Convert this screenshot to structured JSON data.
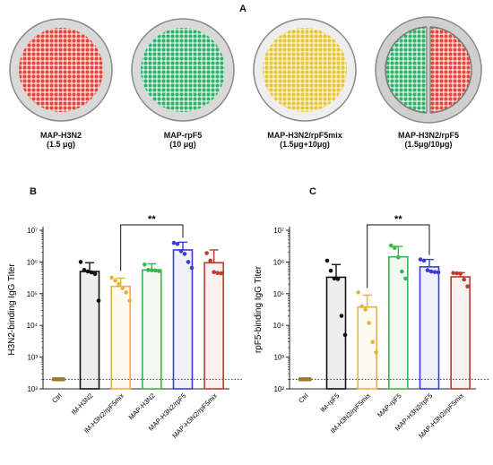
{
  "panels": {
    "A": "A",
    "B": "B",
    "C": "C"
  },
  "map_panel": {
    "patches": [
      {
        "name": "MAP-H3N2",
        "dose": "(1.5 μg)",
        "colors": [
          "#e8453c"
        ]
      },
      {
        "name": "MAP-rpF5",
        "dose": "(10 μg)",
        "colors": [
          "#2fb36a"
        ]
      },
      {
        "name": "MAP-H3N2/rpF5mix",
        "dose": "(1.5μg+10μg)",
        "colors": [
          "#e6c63a"
        ]
      },
      {
        "name": "MAP-H3N2/rpF5",
        "dose": "(1.5μg/10μg)",
        "colors": [
          "#2fb36a",
          "#e8453c"
        ]
      }
    ]
  },
  "chart_data": [
    {
      "type": "bar",
      "ylabel": "H3N2-binding IgG Titer",
      "yscale": "log",
      "ylim": [
        100,
        10000000
      ],
      "yticks": [
        "10²",
        "10³",
        "10⁴",
        "10⁵",
        "10⁶",
        "10⁷"
      ],
      "dotted_line": 200,
      "significance": {
        "label": "**",
        "from": "IM-H3N2/rpF5mix",
        "to": "MAP-H3N2/rpF5"
      },
      "categories": [
        "Ctrl",
        "IM-H3N2",
        "IM-H3N2/rpF5mix",
        "MAP-H3N2",
        "MAP-H3N2/rpF5",
        "MAP-H3N2/rpF5mix"
      ],
      "colors": [
        "#9c7a2a",
        "#111111",
        "#e8b33a",
        "#39b54a",
        "#3b3bd9",
        "#c0392b"
      ],
      "values": [
        200,
        500000,
        170000,
        560000,
        2400000,
        950000
      ],
      "error_upper": [
        200,
        950000,
        310000,
        880000,
        4200000,
        2400000
      ],
      "points": [
        [
          200,
          200,
          200,
          200,
          200,
          200
        ],
        [
          1000000,
          560000,
          500000,
          470000,
          420000,
          60000
        ],
        [
          320000,
          260000,
          200000,
          150000,
          110000,
          60000
        ],
        [
          830000,
          560000,
          550000,
          540000,
          520000
        ],
        [
          4000000,
          3700000,
          2200000,
          1800000,
          1000000,
          650000
        ],
        [
          1900000,
          1100000,
          480000,
          450000,
          440000
        ]
      ]
    },
    {
      "type": "bar",
      "ylabel": "rpF5-binding IgG Titer",
      "yscale": "log",
      "ylim": [
        100,
        10000000
      ],
      "yticks": [
        "10²",
        "10³",
        "10⁴",
        "10⁵",
        "10⁶",
        "10⁷"
      ],
      "dotted_line": 200,
      "significance": {
        "label": "**",
        "from": "IM-H3N2/rpF5mix",
        "to": "MAP-H3N2/rpF5"
      },
      "categories": [
        "Ctrl",
        "IM-rpF5",
        "IM-H3N2/rpF5mix",
        "MAP-rpF5",
        "MAP-H3N2/rpF5",
        "MAP-H3N2/rpF5mix"
      ],
      "colors": [
        "#9c7a2a",
        "#111111",
        "#e8b33a",
        "#39b54a",
        "#3b3bd9",
        "#c0392b"
      ],
      "values": [
        200,
        330000,
        38000,
        1450000,
        700000,
        340000
      ],
      "error_upper": [
        200,
        830000,
        90000,
        3100000,
        1200000,
        460000
      ],
      "points": [
        [
          200,
          200,
          200,
          200,
          200,
          200
        ],
        [
          1100000,
          530000,
          300000,
          290000,
          20000,
          5000
        ],
        [
          110000,
          40000,
          32000,
          12000,
          3000,
          1400
        ],
        [
          3300000,
          2800000,
          1400000,
          500000,
          300000
        ],
        [
          1200000,
          1100000,
          550000,
          500000,
          480000,
          470000
        ],
        [
          450000,
          440000,
          430000,
          280000,
          170000
        ]
      ]
    }
  ]
}
